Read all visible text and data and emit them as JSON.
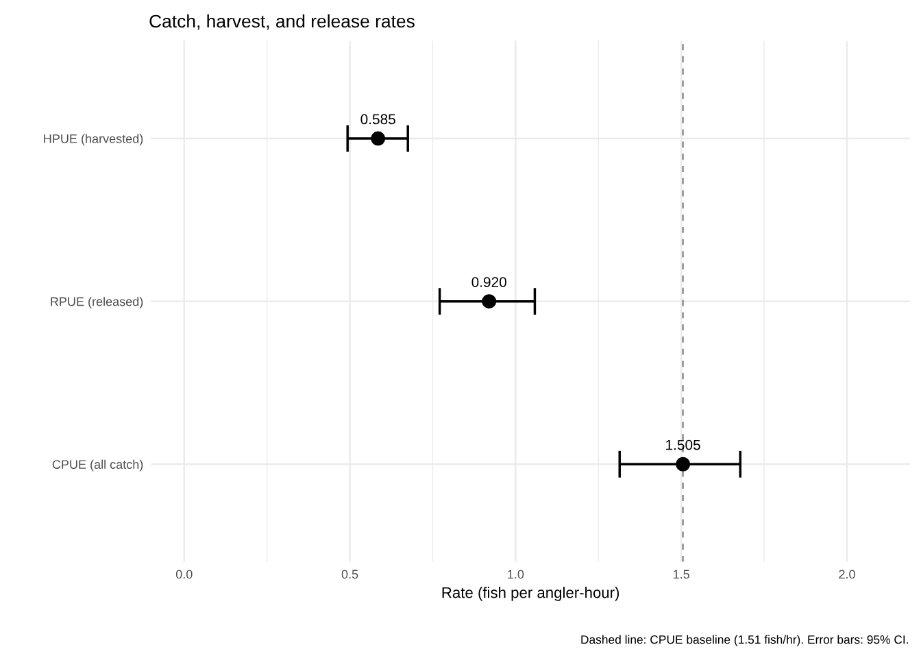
{
  "chart_data": {
    "type": "scatter",
    "orientation": "horizontal",
    "title": "Catch, harvest, and release rates",
    "xlabel": "Rate (fish per angler-hour)",
    "categories": [
      "HPUE (harvested)",
      "RPUE (released)",
      "CPUE (all catch)"
    ],
    "series": [
      {
        "color": "#000000",
        "values": [
          0.585,
          0.92,
          1.505
        ],
        "errors": [
          [
            0.493,
            0.675
          ],
          [
            0.771,
            1.058
          ],
          [
            1.314,
            1.678
          ]
        ],
        "value_labels": [
          "0.585",
          "0.920",
          "1.505"
        ]
      }
    ],
    "marker": "circle",
    "xlim": [
      -0.1,
      2.19
    ],
    "xticks": [
      {
        "value": 0,
        "label": "0.0"
      },
      {
        "value": 0.25,
        "label": null
      },
      0.5,
      {
        "value": 0.75,
        "label": null
      },
      {
        "value": 1,
        "label": "1.0"
      },
      {
        "value": 1.25,
        "label": null
      },
      1.5,
      {
        "value": 1.75,
        "label": null
      },
      {
        "value": 2,
        "label": "2.0"
      }
    ],
    "ref_lines": [
      {
        "axis": "x",
        "value": 1.505,
        "label": null,
        "color": "#7f7f7f",
        "line_style": "dashed"
      }
    ],
    "grid": true,
    "annotations": [
      "Dashed line: CPUE baseline (1.51 fish/hr). Error bars: 95% CI."
    ]
  }
}
